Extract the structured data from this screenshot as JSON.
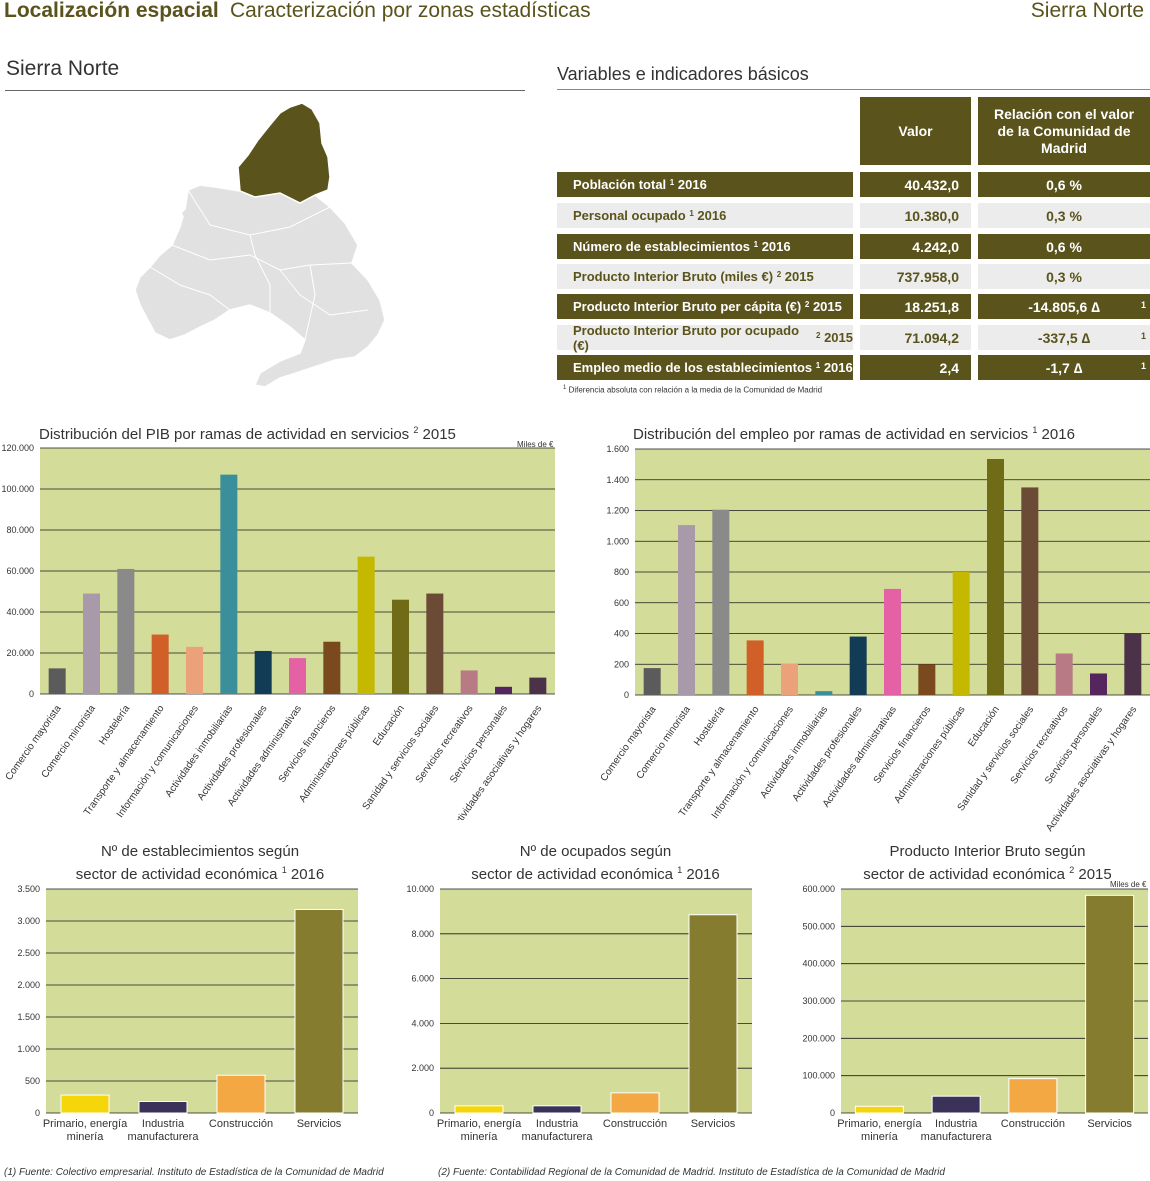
{
  "header": {
    "title_bold": "Localización espacial",
    "title_sub": "Caracterización por zonas estadísticas",
    "zone": "Sierra Norte"
  },
  "area_title": "Sierra Norte",
  "colors": {
    "brand": "#5a531b",
    "plot_bg": "#d3dc99",
    "light_row": "#ececec"
  },
  "table": {
    "title": "Variables e indicadores básicos",
    "col_value": "Valor",
    "col_relation": "Relación con el valor de la Comunidad de Madrid",
    "rows": [
      {
        "label": "Población total",
        "sup": "1",
        "year": "2016",
        "value": "40.432,0",
        "relation": "0,6 %",
        "note": ""
      },
      {
        "label": "Personal ocupado",
        "sup": "1",
        "year": "2016",
        "value": "10.380,0",
        "relation": "0,3 %",
        "note": ""
      },
      {
        "label": "Número de establecimientos",
        "sup": "1",
        "year": "2016",
        "value": "4.242,0",
        "relation": "0,6 %",
        "note": ""
      },
      {
        "label": "Producto Interior Bruto (miles €)",
        "sup": "2",
        "year": "2015",
        "value": "737.958,0",
        "relation": "0,3 %",
        "note": ""
      },
      {
        "label": "Producto Interior Bruto per cápita (€)",
        "sup": "2",
        "year": "2015",
        "value": "18.251,8",
        "relation": "-14.805,6 ∆",
        "note": "1"
      },
      {
        "label": "Producto Interior Bruto por ocupado (€)",
        "sup": "2",
        "year": "2015",
        "value": "71.094,2",
        "relation": "-337,5 ∆",
        "note": "1"
      },
      {
        "label": "Empleo medio de los establecimientos",
        "sup": "1",
        "year": "2016",
        "value": "2,4",
        "relation": "-1,7 ∆",
        "note": "1"
      }
    ],
    "footnote_sup": "1",
    "footnote": "Diferencia absoluta con relación a la media de la Comunidad de Madrid"
  },
  "chart_data": [
    {
      "type": "bar",
      "title": "Distribución del PIB por ramas de actividad en servicios",
      "title_sup": "2",
      "title_year": "2015",
      "units": "Miles de €",
      "ylim": [
        0,
        120000
      ],
      "ticks": [
        "0",
        "20.000",
        "40.000",
        "60.000",
        "80.000",
        "100.000",
        "120.000"
      ],
      "categories": [
        "Comercio mayorista",
        "Comercio minorista",
        "Hostelería",
        "Transporte y almacenamiento",
        "Información y comunicaciones",
        "Actividades inmobiliarias",
        "Actividades profesionales",
        "Actividades administrativas",
        "Servicios financieros",
        "Administraciones públicas",
        "Educación",
        "Sanidad y servicios sociales",
        "Servicios recreativos",
        "Servicios personales",
        "Actividades asociativas y hogares"
      ],
      "values": [
        12500,
        49000,
        61000,
        29000,
        23000,
        107000,
        21000,
        17500,
        25500,
        67000,
        46000,
        49000,
        11500,
        3500,
        8000
      ],
      "colors": [
        "#5b5b5b",
        "#a89aa8",
        "#8a8a8a",
        "#d05f28",
        "#eba27b",
        "#3b8f9b",
        "#123c55",
        "#e561a6",
        "#7a4a1e",
        "#c5b800",
        "#6f6b16",
        "#6b4a36",
        "#b87a84",
        "#55265d",
        "#4c3248"
      ]
    },
    {
      "type": "bar",
      "title": "Distribución del empleo por ramas de actividad en servicios",
      "title_sup": "1",
      "title_year": "2016",
      "ylim": [
        0,
        1600
      ],
      "ticks": [
        "0",
        "200",
        "400",
        "600",
        "800",
        "1.000",
        "1.200",
        "1.400",
        "1.600"
      ],
      "categories": [
        "Comercio mayorista",
        "Comercio minorista",
        "Hostelería",
        "Transporte y almacenamiento",
        "Información y comunicaciones",
        "Actividades inmobiliarias",
        "Actividades profesionales",
        "Actividades administrativas",
        "Servicios financieros",
        "Administraciones públicas",
        "Educación",
        "Sanidad y servicios sociales",
        "Servicios recreativos",
        "Servicios personales",
        "Actividades asociativas y hogares"
      ],
      "values": [
        175,
        1105,
        1205,
        355,
        205,
        25,
        380,
        690,
        200,
        800,
        1535,
        1350,
        270,
        140,
        400
      ],
      "colors": [
        "#5b5b5b",
        "#a89aa8",
        "#8a8a8a",
        "#d05f28",
        "#eba27b",
        "#3b8f9b",
        "#123c55",
        "#e561a6",
        "#7a4a1e",
        "#c5b800",
        "#6f6b16",
        "#6b4a36",
        "#b87a84",
        "#55265d",
        "#4c3248"
      ]
    },
    {
      "type": "bar",
      "title_line1": "Nº de establecimientos según",
      "title_line2": "sector de actividad económica",
      "title_sup": "1",
      "title_year": "2016",
      "ylim": [
        0,
        3500
      ],
      "ticks": [
        "0",
        "500",
        "1.000",
        "1.500",
        "2.000",
        "2.500",
        "3.000",
        "3.500"
      ],
      "categories": [
        "Primario, energía minería",
        "Industria manufacturera",
        "Construcción",
        "Servicios"
      ],
      "values": [
        280,
        180,
        590,
        3180
      ],
      "colors": [
        "#f5d60a",
        "#3a3258",
        "#f3a843",
        "#867c2f"
      ]
    },
    {
      "type": "bar",
      "title_line1": "Nº de ocupados según",
      "title_line2": "sector de actividad económica",
      "title_sup": "1",
      "title_year": "2016",
      "ylim": [
        0,
        10000
      ],
      "ticks": [
        "0",
        "2.000",
        "4.000",
        "6.000",
        "8.000",
        "10.000"
      ],
      "categories": [
        "Primario, energía minería",
        "Industria manufacturera",
        "Construcción",
        "Servicios"
      ],
      "values": [
        320,
        320,
        900,
        8850
      ],
      "colors": [
        "#f5d60a",
        "#3a3258",
        "#f3a843",
        "#867c2f"
      ]
    },
    {
      "type": "bar",
      "title_line1": "Producto Interior Bruto según",
      "title_line2": "sector de actividad económica",
      "title_sup": "2",
      "title_year": "2015",
      "units": "Miles de €",
      "ylim": [
        0,
        600000
      ],
      "ticks": [
        "0",
        "100.000",
        "200.000",
        "300.000",
        "400.000",
        "500.000",
        "600.000"
      ],
      "categories": [
        "Primario, energía minería",
        "Industria manufacturera",
        "Construcción",
        "Servicios"
      ],
      "values": [
        18000,
        45000,
        92000,
        583000
      ],
      "colors": [
        "#f5d60a",
        "#3a3258",
        "#f3a843",
        "#867c2f"
      ]
    }
  ],
  "sources": {
    "s1": "(1) Fuente: Colectivo empresarial. Instituto de Estadística de la Comunidad de Madrid",
    "s2": "(2) Fuente: Contabilidad Regional de la Comunidad de Madrid. Instituto de Estadística de la Comunidad de Madrid"
  }
}
